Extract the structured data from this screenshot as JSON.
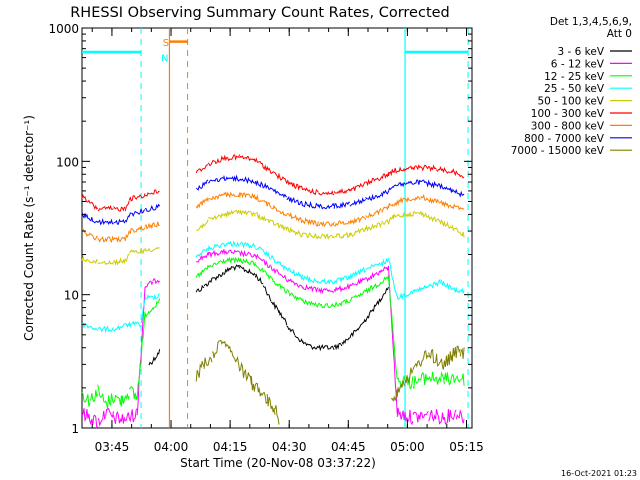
{
  "chart_data": {
    "type": "line",
    "title": "RHESSI Observing Summary Count Rates, Corrected",
    "xlabel": "Start Time (20-Nov-08 03:37:22)",
    "ylabel": "Corrected Count Rate (s⁻¹ detector⁻¹)",
    "y_scale": "log",
    "ylim": [
      1,
      1000
    ],
    "xlim_minutes": [
      0,
      99
    ],
    "x_ticks": [
      {
        "label": "03:45",
        "min": 7.6
      },
      {
        "label": "04:00",
        "min": 22.6
      },
      {
        "label": "04:15",
        "min": 37.6
      },
      {
        "label": "04:30",
        "min": 52.6
      },
      {
        "label": "04:45",
        "min": 67.6
      },
      {
        "label": "05:00",
        "min": 82.6
      },
      {
        "label": "05:15",
        "min": 97.6
      }
    ],
    "y_ticks": [
      {
        "label": "1",
        "v": 1
      },
      {
        "label": "10",
        "v": 10
      },
      {
        "label": "100",
        "v": 100
      },
      {
        "label": "1000",
        "v": 1000
      }
    ],
    "legend_header": [
      "Det 1,3,4,5,6,9,",
      "Att 0"
    ],
    "legend_position": "right",
    "series": [
      {
        "name": "3 - 6 keV",
        "color": "#000000",
        "points": [
          [
            0,
            null
          ],
          [
            16,
            null
          ],
          [
            17,
            3.0
          ],
          [
            18,
            3.2
          ],
          [
            19,
            3.5
          ],
          [
            19.7,
            3.8
          ],
          [
            22.5,
            null
          ],
          [
            28,
            null
          ],
          [
            29,
            10.5
          ],
          [
            31,
            11.5
          ],
          [
            33,
            13
          ],
          [
            36,
            14.5
          ],
          [
            38,
            16
          ],
          [
            40,
            16
          ],
          [
            42,
            15
          ],
          [
            44,
            14
          ],
          [
            46,
            12
          ],
          [
            48,
            9
          ],
          [
            50,
            7.5
          ],
          [
            52,
            6
          ],
          [
            54,
            5
          ],
          [
            56,
            4.4
          ],
          [
            58,
            4.1
          ],
          [
            60,
            4.0
          ],
          [
            62,
            4.0
          ],
          [
            64,
            4.0
          ],
          [
            66,
            4.3
          ],
          [
            68,
            4.8
          ],
          [
            70,
            5.5
          ],
          [
            72,
            6.5
          ],
          [
            74,
            7.8
          ],
          [
            76,
            9.5
          ],
          [
            77.8,
            11.5
          ],
          [
            80,
            null
          ]
        ]
      },
      {
        "name": "6 - 12 keV",
        "color": "#ff00ff",
        "points": [
          [
            0,
            1.3
          ],
          [
            2,
            1.2
          ],
          [
            4,
            1.1
          ],
          [
            6,
            1.3
          ],
          [
            8,
            1.2
          ],
          [
            10,
            1.15
          ],
          [
            12,
            1.2
          ],
          [
            14,
            1.3
          ],
          [
            16,
            11.5
          ],
          [
            18,
            12.5
          ],
          [
            19.7,
            13
          ],
          [
            22.5,
            null
          ],
          [
            28,
            null
          ],
          [
            29,
            18
          ],
          [
            32,
            20
          ],
          [
            36,
            21
          ],
          [
            40,
            20.5
          ],
          [
            44,
            19.5
          ],
          [
            48,
            16
          ],
          [
            52,
            13
          ],
          [
            56,
            11.5
          ],
          [
            60,
            10.8
          ],
          [
            64,
            10.8
          ],
          [
            68,
            11.5
          ],
          [
            72,
            13
          ],
          [
            76,
            15
          ],
          [
            77.8,
            16
          ],
          [
            80,
            1.3
          ],
          [
            84,
            1.2
          ],
          [
            88,
            1.25
          ],
          [
            92,
            1.2
          ],
          [
            95,
            1.3
          ],
          [
            97,
            1.2
          ]
        ]
      },
      {
        "name": "12 - 25 keV",
        "color": "#00ff00",
        "points": [
          [
            0,
            1.8
          ],
          [
            2,
            1.6
          ],
          [
            4,
            1.9
          ],
          [
            6,
            1.5
          ],
          [
            8,
            1.7
          ],
          [
            10,
            1.6
          ],
          [
            12,
            1.9
          ],
          [
            14,
            1.7
          ],
          [
            16,
            7
          ],
          [
            17,
            7.5
          ],
          [
            18,
            8
          ],
          [
            19,
            8.5
          ],
          [
            19.7,
            9
          ],
          [
            22.5,
            null
          ],
          [
            28,
            null
          ],
          [
            29,
            13.5
          ],
          [
            32,
            16
          ],
          [
            36,
            18
          ],
          [
            40,
            18
          ],
          [
            44,
            17
          ],
          [
            48,
            13
          ],
          [
            52,
            10.5
          ],
          [
            56,
            9
          ],
          [
            60,
            8.3
          ],
          [
            64,
            8.3
          ],
          [
            68,
            9
          ],
          [
            72,
            10.5
          ],
          [
            76,
            12.5
          ],
          [
            77.8,
            13.5
          ],
          [
            80,
            2.3
          ],
          [
            84,
            2.2
          ],
          [
            88,
            2.4
          ],
          [
            92,
            2.3
          ],
          [
            95,
            2.4
          ],
          [
            97,
            2.3
          ]
        ]
      },
      {
        "name": "25 - 50 keV",
        "color": "#00ffff",
        "points": [
          [
            0,
            6
          ],
          [
            4,
            5.5
          ],
          [
            8,
            5.5
          ],
          [
            12,
            6
          ],
          [
            15,
            6
          ],
          [
            16,
            9.5
          ],
          [
            18,
            9.5
          ],
          [
            19.7,
            10
          ],
          [
            22.5,
            null
          ],
          [
            28,
            null
          ],
          [
            29,
            19.5
          ],
          [
            32,
            22
          ],
          [
            36,
            24
          ],
          [
            40,
            24
          ],
          [
            44,
            23
          ],
          [
            48,
            19
          ],
          [
            52,
            15.5
          ],
          [
            56,
            13.5
          ],
          [
            60,
            12.5
          ],
          [
            64,
            12.5
          ],
          [
            68,
            13.5
          ],
          [
            72,
            15.5
          ],
          [
            76,
            17
          ],
          [
            77.8,
            18.5
          ],
          [
            80,
            9.5
          ],
          [
            84,
            10.5
          ],
          [
            88,
            11.5
          ],
          [
            91,
            12.5
          ],
          [
            94,
            11
          ],
          [
            97,
            10.5
          ]
        ]
      },
      {
        "name": "50 - 100 keV",
        "color": "#cccc00",
        "points": [
          [
            0,
            18.5
          ],
          [
            4,
            17.5
          ],
          [
            8,
            17.5
          ],
          [
            11,
            18
          ],
          [
            12,
            20.5
          ],
          [
            16,
            21.5
          ],
          [
            19.7,
            22.5
          ],
          [
            22.5,
            null
          ],
          [
            28,
            null
          ],
          [
            29,
            30
          ],
          [
            32,
            36
          ],
          [
            36,
            40
          ],
          [
            40,
            42
          ],
          [
            44,
            40
          ],
          [
            48,
            35
          ],
          [
            52,
            31
          ],
          [
            56,
            28
          ],
          [
            60,
            27.5
          ],
          [
            64,
            27.5
          ],
          [
            68,
            28
          ],
          [
            72,
            31
          ],
          [
            76,
            34
          ],
          [
            77.8,
            35
          ],
          [
            79,
            38
          ],
          [
            82,
            40
          ],
          [
            86,
            41
          ],
          [
            90,
            36
          ],
          [
            94,
            32
          ],
          [
            97,
            28
          ]
        ]
      },
      {
        "name": "100 - 300 keV",
        "color": "#ff0000",
        "points": [
          [
            0,
            54
          ],
          [
            4,
            44
          ],
          [
            8,
            44
          ],
          [
            11,
            44
          ],
          [
            12,
            52
          ],
          [
            16,
            56
          ],
          [
            19.7,
            60
          ],
          [
            22.5,
            null
          ],
          [
            28,
            null
          ],
          [
            29,
            82
          ],
          [
            32,
            95
          ],
          [
            36,
            105
          ],
          [
            40,
            108
          ],
          [
            44,
            102
          ],
          [
            48,
            84
          ],
          [
            52,
            70
          ],
          [
            56,
            62
          ],
          [
            60,
            58
          ],
          [
            64,
            58
          ],
          [
            68,
            60
          ],
          [
            72,
            68
          ],
          [
            76,
            76
          ],
          [
            77.8,
            80
          ],
          [
            79,
            85
          ],
          [
            82,
            88
          ],
          [
            86,
            90
          ],
          [
            90,
            88
          ],
          [
            94,
            84
          ],
          [
            97,
            78
          ]
        ]
      },
      {
        "name": "300 - 800 keV",
        "color": "#ff7f00",
        "points": [
          [
            0,
            30
          ],
          [
            4,
            26
          ],
          [
            8,
            26
          ],
          [
            11,
            26
          ],
          [
            12,
            30
          ],
          [
            16,
            32
          ],
          [
            19.7,
            34
          ],
          [
            20,
            null
          ],
          [
            28,
            null
          ],
          [
            29,
            46
          ],
          [
            32,
            52
          ],
          [
            36,
            56
          ],
          [
            40,
            56
          ],
          [
            44,
            54
          ],
          [
            48,
            46
          ],
          [
            52,
            40
          ],
          [
            56,
            36
          ],
          [
            60,
            34
          ],
          [
            64,
            34
          ],
          [
            68,
            35
          ],
          [
            72,
            38
          ],
          [
            76,
            43
          ],
          [
            77.8,
            46
          ],
          [
            79,
            48
          ],
          [
            82,
            52
          ],
          [
            86,
            54
          ],
          [
            90,
            50
          ],
          [
            94,
            46
          ],
          [
            97,
            43
          ]
        ]
      },
      {
        "name": "800 - 7000 keV",
        "color": "#0000ff",
        "points": [
          [
            0,
            40
          ],
          [
            4,
            35
          ],
          [
            8,
            35
          ],
          [
            11,
            35
          ],
          [
            12,
            40
          ],
          [
            16,
            43
          ],
          [
            19.7,
            46
          ],
          [
            22.5,
            null
          ],
          [
            28,
            null
          ],
          [
            29,
            62
          ],
          [
            32,
            70
          ],
          [
            36,
            75
          ],
          [
            40,
            74
          ],
          [
            44,
            70
          ],
          [
            48,
            62
          ],
          [
            52,
            53
          ],
          [
            56,
            48
          ],
          [
            60,
            46
          ],
          [
            64,
            46
          ],
          [
            68,
            48
          ],
          [
            72,
            52
          ],
          [
            76,
            56
          ],
          [
            77.8,
            60
          ],
          [
            79,
            66
          ],
          [
            82,
            68
          ],
          [
            86,
            70
          ],
          [
            90,
            66
          ],
          [
            94,
            60
          ],
          [
            97,
            55
          ]
        ]
      },
      {
        "name": "7000 - 15000 keV",
        "color": "#808000",
        "points": [
          [
            0,
            null
          ],
          [
            28,
            null
          ],
          [
            29,
            2.5
          ],
          [
            31,
            3
          ],
          [
            33,
            3.5
          ],
          [
            35,
            4.5
          ],
          [
            37,
            4.2
          ],
          [
            39,
            3.2
          ],
          [
            41,
            2.6
          ],
          [
            43,
            2.2
          ],
          [
            45,
            1.9
          ],
          [
            47,
            1.6
          ],
          [
            49,
            1.4
          ],
          [
            50,
            1.1
          ],
          [
            51,
            null
          ],
          [
            78,
            null
          ],
          [
            78.5,
            1.6
          ],
          [
            80,
            1.9
          ],
          [
            82,
            2.3
          ],
          [
            84,
            2.6
          ],
          [
            86,
            3.2
          ],
          [
            88,
            3.6
          ],
          [
            90,
            3.3
          ],
          [
            92,
            3.0
          ],
          [
            94,
            3.5
          ],
          [
            96,
            3.8
          ],
          [
            97,
            3.6
          ]
        ]
      }
    ],
    "annotations": [
      {
        "label": "S",
        "min": 21.3,
        "v": 730,
        "color": "#ff7f00"
      },
      {
        "label": "N",
        "min": 21.0,
        "v": 560,
        "color": "#00ffff"
      }
    ],
    "saa_line": {
      "color": "#00ffff",
      "level": 660,
      "spans": [
        [
          0,
          15
        ],
        [
          82,
          98
        ]
      ]
    },
    "dashed_markers": [
      {
        "min": 15,
        "color": "#00ffff"
      },
      {
        "min": 26.8,
        "color": "#ff7f00"
      },
      {
        "min": 98,
        "color": "#00ffff"
      }
    ],
    "solid_markers": [
      {
        "min": 22.2,
        "color": "#ff7f00"
      },
      {
        "min": 82,
        "color": "#00ffff"
      }
    ],
    "orange_bar": {
      "color": "#ff7f00",
      "level": 790,
      "span": [
        22.2,
        26.8
      ]
    }
  },
  "timestamp": "16-Oct-2021 01:23"
}
